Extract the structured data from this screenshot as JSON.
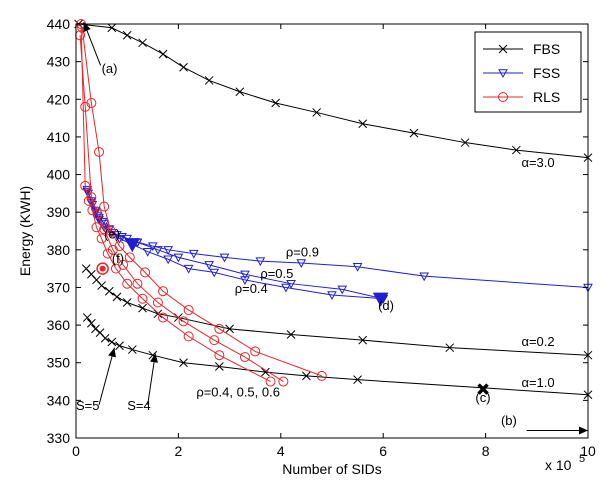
{
  "chart_data": {
    "type": "line",
    "title": "",
    "xlabel": "Number of SIDs",
    "ylabel": "Energy (KWH)",
    "x_multiplier_label": "x 10",
    "x_multiplier_exp": "5",
    "xlim": [
      0,
      10
    ],
    "ylim": [
      330,
      440
    ],
    "xticks": [
      0,
      2,
      4,
      6,
      8,
      10
    ],
    "yticks": [
      330,
      340,
      350,
      360,
      370,
      380,
      390,
      400,
      410,
      420,
      430,
      440
    ],
    "grid": false,
    "legend_position": "top-right",
    "colors": {
      "FBS": "#000000",
      "FSS": "#1f1fd6",
      "RLS": "#e8262a"
    },
    "series": [
      {
        "name": "FBS",
        "marker": "x",
        "lines": [
          {
            "label": "α=3.0",
            "points": [
              [
                0.05,
                440
              ],
              [
                0.7,
                439
              ],
              [
                1.0,
                437
              ],
              [
                1.3,
                435
              ],
              [
                1.7,
                432
              ],
              [
                2.1,
                428.5
              ],
              [
                2.6,
                425
              ],
              [
                3.2,
                422
              ],
              [
                3.9,
                419
              ],
              [
                4.7,
                416.5
              ],
              [
                5.6,
                413.5
              ],
              [
                6.6,
                411
              ],
              [
                7.6,
                408.5
              ],
              [
                8.6,
                406.5
              ],
              [
                10,
                404.5
              ]
            ]
          },
          {
            "label": "α=0.2",
            "points": [
              [
                0.2,
                375
              ],
              [
                0.3,
                373.5
              ],
              [
                0.4,
                372
              ],
              [
                0.5,
                370.5
              ],
              [
                0.65,
                369
              ],
              [
                0.8,
                367.5
              ],
              [
                1.0,
                366
              ],
              [
                1.3,
                364.5
              ],
              [
                1.6,
                363
              ],
              [
                2.0,
                362
              ],
              [
                3.0,
                359
              ],
              [
                4.2,
                357.5
              ],
              [
                5.6,
                356
              ],
              [
                7.3,
                354
              ],
              [
                10,
                352
              ]
            ]
          },
          {
            "label": "α=1.0",
            "points": [
              [
                0.22,
                362
              ],
              [
                0.3,
                360.5
              ],
              [
                0.38,
                359
              ],
              [
                0.47,
                358
              ],
              [
                0.57,
                356.5
              ],
              [
                0.7,
                355.5
              ],
              [
                0.85,
                354.5
              ],
              [
                1.1,
                353.5
              ],
              [
                1.5,
                352
              ],
              [
                2.1,
                350
              ],
              [
                2.8,
                349
              ],
              [
                3.7,
                347.5
              ],
              [
                4.5,
                346.5
              ],
              [
                5.5,
                345.5
              ],
              [
                10,
                341.5
              ]
            ]
          }
        ]
      },
      {
        "name": "FSS",
        "marker": "triangle-down",
        "lines": [
          {
            "label": "ρ=0.9",
            "points": [
              [
                0.22,
                395.5
              ],
              [
                0.3,
                393
              ],
              [
                0.38,
                390.5
              ],
              [
                0.45,
                388.5
              ],
              [
                0.55,
                387
              ],
              [
                0.65,
                385.5
              ],
              [
                0.8,
                384
              ],
              [
                1.0,
                383
              ],
              [
                1.2,
                382
              ],
              [
                1.5,
                381
              ],
              [
                1.8,
                380
              ],
              [
                2.3,
                379
              ],
              [
                2.9,
                378
              ],
              [
                3.6,
                377
              ],
              [
                4.4,
                376.5
              ],
              [
                5.5,
                375.5
              ],
              [
                6.8,
                373
              ],
              [
                10,
                370
              ]
            ]
          },
          {
            "label": "ρ=0.5",
            "points": [
              [
                0.22,
                396
              ],
              [
                0.3,
                392.5
              ],
              [
                0.38,
                390
              ],
              [
                0.45,
                388
              ],
              [
                0.55,
                386
              ],
              [
                0.7,
                384.5
              ],
              [
                0.9,
                383.5
              ],
              [
                1.2,
                382
              ],
              [
                1.6,
                380
              ],
              [
                2.0,
                378
              ],
              [
                2.6,
                376
              ],
              [
                3.3,
                373.5
              ],
              [
                4.2,
                371
              ],
              [
                5.2,
                369.5
              ],
              [
                6.0,
                367
              ]
            ]
          },
          {
            "label": "ρ=0.4",
            "points": [
              [
                0.24,
                395
              ],
              [
                0.32,
                392
              ],
              [
                0.42,
                389
              ],
              [
                0.52,
                387.5
              ],
              [
                0.65,
                385.5
              ],
              [
                0.85,
                383
              ],
              [
                1.1,
                381.5
              ],
              [
                1.4,
                379.5
              ],
              [
                1.8,
                377.5
              ],
              [
                2.2,
                375
              ],
              [
                2.7,
                374
              ],
              [
                3.3,
                372
              ],
              [
                4.1,
                370
              ],
              [
                5.0,
                368
              ],
              [
                6.0,
                367
              ]
            ]
          }
        ]
      },
      {
        "name": "RLS",
        "marker": "circle",
        "lines": [
          {
            "label": "ρ=0.4",
            "points": [
              [
                0.1,
                440
              ],
              [
                0.18,
                397
              ],
              [
                0.25,
                393
              ],
              [
                0.32,
                390.5
              ],
              [
                0.4,
                386
              ],
              [
                0.5,
                383
              ],
              [
                0.62,
                379
              ],
              [
                0.78,
                375
              ],
              [
                1.0,
                371
              ],
              [
                1.3,
                367
              ],
              [
                1.7,
                362
              ],
              [
                2.2,
                357
              ],
              [
                2.8,
                352
              ],
              [
                3.8,
                345
              ]
            ]
          },
          {
            "label": "ρ=0.5",
            "points": [
              [
                0.08,
                437
              ],
              [
                0.18,
                418
              ],
              [
                0.3,
                394
              ],
              [
                0.42,
                389.5
              ],
              [
                0.55,
                385.5
              ],
              [
                0.72,
                380
              ],
              [
                0.92,
                376
              ],
              [
                1.2,
                371
              ],
              [
                1.6,
                366
              ],
              [
                2.1,
                361
              ],
              [
                2.7,
                356
              ],
              [
                3.3,
                351.5
              ],
              [
                4.05,
                345
              ]
            ]
          },
          {
            "label": "ρ=0.6",
            "points": [
              [
                0.12,
                439
              ],
              [
                0.3,
                419
              ],
              [
                0.45,
                406
              ],
              [
                0.55,
                391.5
              ],
              [
                0.68,
                385
              ],
              [
                0.85,
                381
              ],
              [
                1.05,
                378
              ],
              [
                1.35,
                374
              ],
              [
                1.7,
                369
              ],
              [
                2.2,
                364
              ],
              [
                2.8,
                359
              ],
              [
                3.5,
                353
              ],
              [
                4.8,
                346.5
              ]
            ]
          }
        ]
      }
    ],
    "highlight_points": [
      {
        "id": "(e)",
        "x": 1.1,
        "y": 381.5,
        "marker": "triangle-filled",
        "color": "#1f1fd6"
      },
      {
        "id": "(d)",
        "x": 5.95,
        "y": 367,
        "marker": "triangle-filled",
        "color": "#1f1fd6"
      },
      {
        "id": "(f)",
        "x": 0.52,
        "y": 375,
        "marker": "dot-circle",
        "color": "#e8262a"
      },
      {
        "id": "(c)",
        "x": 7.95,
        "y": 343,
        "marker": "x-bold",
        "color": "#000000"
      }
    ],
    "annotations": [
      {
        "text": "(a)",
        "x": 0.5,
        "y": 427
      },
      {
        "text": "(b)",
        "x": 8.3,
        "y": 333.5
      },
      {
        "text": "(c)",
        "x": 7.8,
        "y": 339.5
      },
      {
        "text": "(d)",
        "x": 5.9,
        "y": 364
      },
      {
        "text": "(e)",
        "x": 0.55,
        "y": 383
      },
      {
        "text": "(f)",
        "x": 0.7,
        "y": 376.5
      },
      {
        "text": "α=3.0",
        "x": 8.7,
        "y": 402
      },
      {
        "text": "α=0.2",
        "x": 8.7,
        "y": 354.5
      },
      {
        "text": "α=1.0",
        "x": 8.7,
        "y": 343.5
      },
      {
        "text": "ρ=0.9",
        "x": 4.1,
        "y": 378.2
      },
      {
        "text": "ρ=0.5",
        "x": 3.6,
        "y": 372.5
      },
      {
        "text": "ρ=0.4",
        "x": 3.1,
        "y": 368.5
      },
      {
        "text": "ρ=0.4, 0.5, 0.6",
        "x": 2.35,
        "y": 341
      },
      {
        "text": "S=5",
        "x": 0.0,
        "y": 337.5
      },
      {
        "text": "S=4",
        "x": 1.0,
        "y": 337.5
      }
    ],
    "arrows": [
      {
        "from": [
          0.48,
          429
        ],
        "to": [
          0.15,
          440.5
        ]
      },
      {
        "from": [
          8.8,
          332
        ],
        "to": [
          10,
          332
        ]
      },
      {
        "from": [
          0.45,
          338.8
        ],
        "to": [
          0.75,
          354
        ]
      },
      {
        "from": [
          1.4,
          338.8
        ],
        "to": [
          1.55,
          352.5
        ]
      }
    ]
  }
}
